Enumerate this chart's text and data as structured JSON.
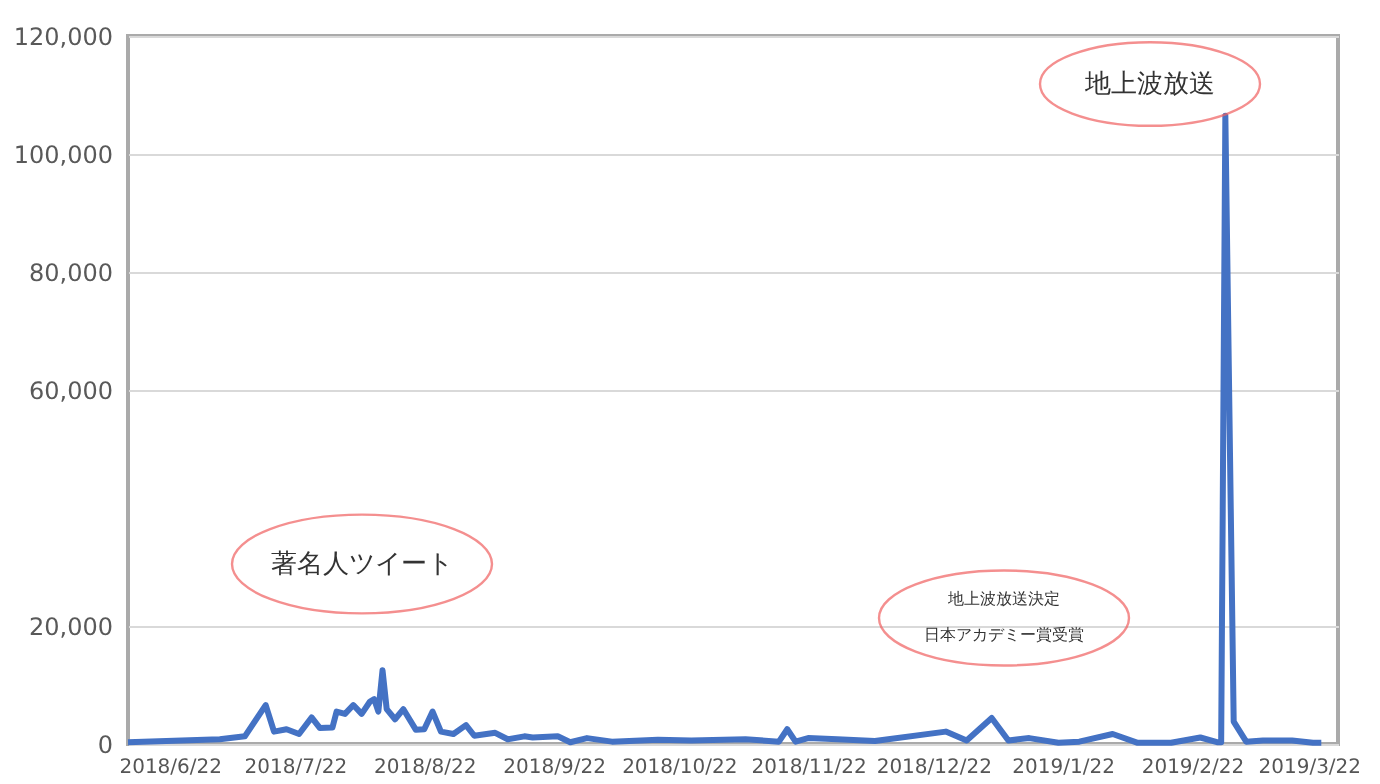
{
  "chart_data": {
    "type": "line",
    "x": [
      "2018-06-12",
      "2018-07-04",
      "2018-07-10",
      "2018-07-15",
      "2018-07-17",
      "2018-07-20",
      "2018-07-23",
      "2018-07-26",
      "2018-07-28",
      "2018-07-31",
      "2018-08-01",
      "2018-08-03",
      "2018-08-05",
      "2018-08-07",
      "2018-08-09",
      "2018-08-10",
      "2018-08-11",
      "2018-08-12",
      "2018-08-13",
      "2018-08-15",
      "2018-08-17",
      "2018-08-20",
      "2018-08-22",
      "2018-08-24",
      "2018-08-26",
      "2018-08-29",
      "2018-09-01",
      "2018-09-03",
      "2018-09-08",
      "2018-09-11",
      "2018-09-15",
      "2018-09-17",
      "2018-09-23",
      "2018-09-26",
      "2018-09-30",
      "2018-10-06",
      "2018-10-17",
      "2018-10-25",
      "2018-11-07",
      "2018-11-15",
      "2018-11-17",
      "2018-11-19",
      "2018-11-22",
      "2018-11-29",
      "2018-12-08",
      "2018-12-25",
      "2018-12-30",
      "2019-01-05",
      "2019-01-09",
      "2019-01-14",
      "2019-01-21",
      "2019-01-26",
      "2019-02-03",
      "2019-02-09",
      "2019-02-17",
      "2019-02-24",
      "2019-02-28",
      "2019-03-01",
      "2019-03-02",
      "2019-03-04",
      "2019-03-07",
      "2019-03-11",
      "2019-03-18",
      "2019-03-23",
      "2019-03-25"
    ],
    "series": [
      {
        "color": "#4472c4",
        "values": [
          300,
          800,
          1300,
          6600,
          2100,
          2500,
          1700,
          4500,
          2700,
          2800,
          5500,
          5100,
          6600,
          5100,
          7200,
          7600,
          5500,
          12500,
          5900,
          4200,
          5900,
          2400,
          2500,
          5500,
          2100,
          1700,
          3200,
          1400,
          1900,
          800,
          1300,
          1100,
          1300,
          300,
          1000,
          400,
          700,
          600,
          800,
          400,
          2500,
          400,
          1000,
          800,
          500,
          2100,
          600,
          4400,
          600,
          1000,
          200,
          400,
          1700,
          200,
          200,
          1100,
          300,
          300,
          106500,
          3800,
          400,
          600,
          600,
          200,
          200
        ]
      }
    ],
    "xlim": [
      "2018-06-12",
      "2019-03-29"
    ],
    "xticks": [
      {
        "value": "2018-06-22",
        "label": "2018/6/22"
      },
      {
        "value": "2018-07-22",
        "label": "2018/7/22"
      },
      {
        "value": "2018-08-22",
        "label": "2018/8/22"
      },
      {
        "value": "2018-09-22",
        "label": "2018/9/22"
      },
      {
        "value": "2018-10-22",
        "label": "2018/10/22"
      },
      {
        "value": "2018-11-22",
        "label": "2018/11/22"
      },
      {
        "value": "2018-12-22",
        "label": "2018/12/22"
      },
      {
        "value": "2019-01-22",
        "label": "2019/1/22"
      },
      {
        "value": "2019-02-22",
        "label": "2019/2/22"
      },
      {
        "value": "2019-03-22",
        "label": "2019/3/22"
      }
    ],
    "ylim": [
      0,
      120000
    ],
    "yticks": [
      0,
      {
        "value": 20000,
        "label": "20,000"
      },
      {
        "value": 60000,
        "label": "60,000"
      },
      {
        "value": 80000,
        "label": "80,000"
      },
      {
        "value": 100000,
        "label": "100,000"
      },
      {
        "value": 120000,
        "label": "120,000"
      }
    ],
    "grid": "y",
    "legend": false,
    "marker": "none",
    "line_style": "solid",
    "annotations": [
      "著名人ツイート",
      "地上波放送決定",
      "日本アカデミー賞受賞",
      "地上波放送"
    ]
  }
}
